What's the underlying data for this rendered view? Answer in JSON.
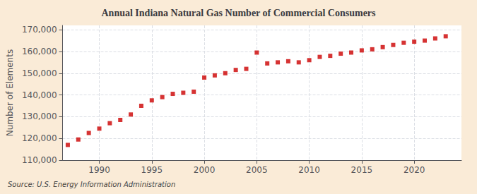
{
  "chart_data": {
    "type": "scatter",
    "title": "Annual Indiana Natural Gas Number of Commercial Consumers",
    "ylabel": "Number of Elements",
    "source": "Source: U.S. Energy Information Administration",
    "x": [
      1987,
      1988,
      1989,
      1990,
      1991,
      1992,
      1993,
      1994,
      1995,
      1996,
      1997,
      1998,
      1999,
      2000,
      2001,
      2002,
      2003,
      2004,
      2005,
      2006,
      2007,
      2008,
      2009,
      2010,
      2011,
      2012,
      2013,
      2014,
      2015,
      2016,
      2017,
      2018,
      2019,
      2020,
      2021,
      2022,
      2023
    ],
    "values": [
      117000,
      119500,
      122500,
      124500,
      127000,
      128500,
      131000,
      135000,
      137500,
      139000,
      140500,
      141000,
      141500,
      148000,
      149000,
      150000,
      151500,
      152000,
      159500,
      154500,
      155000,
      155500,
      155000,
      156000,
      157500,
      158000,
      159000,
      159500,
      160500,
      161000,
      162000,
      163000,
      164000,
      164500,
      165000,
      166000,
      167000
    ],
    "color": "#cc0000",
    "marker": "square",
    "xlim": [
      1986.5,
      2024.5
    ],
    "xticks": [
      1990,
      1995,
      2000,
      2005,
      2010,
      2015,
      2020
    ],
    "ylim": [
      110000,
      172000
    ],
    "yticks": [
      {
        "value": 110000,
        "label": "110,000"
      },
      {
        "value": 120000,
        "label": "120,000"
      },
      {
        "value": 130000,
        "label": "130,000"
      },
      {
        "value": 140000,
        "label": "140,000"
      },
      {
        "value": 150000,
        "label": "150,000"
      },
      {
        "value": 160000,
        "label": "160,000"
      },
      {
        "value": 170000,
        "label": "170,000"
      }
    ],
    "grid": true
  }
}
